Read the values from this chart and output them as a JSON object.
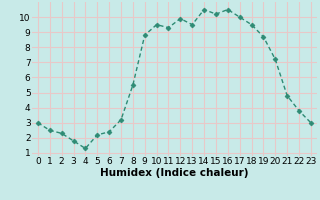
{
  "x": [
    0,
    1,
    2,
    3,
    4,
    5,
    6,
    7,
    8,
    9,
    10,
    11,
    12,
    13,
    14,
    15,
    16,
    17,
    18,
    19,
    20,
    21,
    22,
    23
  ],
  "y": [
    3.0,
    2.5,
    2.3,
    1.8,
    1.3,
    2.2,
    2.4,
    3.2,
    5.5,
    8.8,
    9.5,
    9.3,
    9.9,
    9.5,
    10.5,
    10.2,
    10.5,
    10.0,
    9.5,
    8.7,
    7.2,
    4.8,
    3.8,
    3.0
  ],
  "line_color": "#2e8b74",
  "marker": "D",
  "marker_size": 2.5,
  "bg_color": "#c8eae8",
  "grid_color": "#e8c8c8",
  "xlabel": "Humidex (Indice chaleur)",
  "xlim": [
    -0.5,
    23.5
  ],
  "ylim": [
    0.8,
    11.0
  ],
  "xticks": [
    0,
    1,
    2,
    3,
    4,
    5,
    6,
    7,
    8,
    9,
    10,
    11,
    12,
    13,
    14,
    15,
    16,
    17,
    18,
    19,
    20,
    21,
    22,
    23
  ],
  "yticks": [
    1,
    2,
    3,
    4,
    5,
    6,
    7,
    8,
    9,
    10
  ],
  "xlabel_fontsize": 7.5,
  "tick_fontsize": 6.5,
  "linewidth": 1.0
}
